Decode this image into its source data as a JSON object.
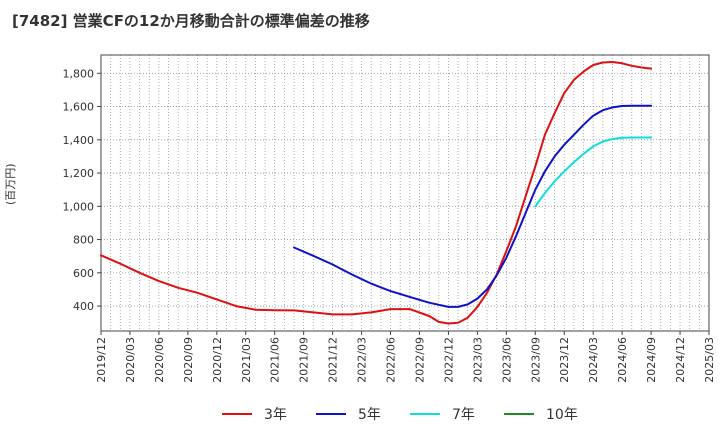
{
  "chart_data": {
    "type": "line",
    "title": "[7482]  営業CFの12か月移動合計の標準偏差の推移",
    "ylabel": "(百万円)",
    "xlabel": "",
    "y_ticks": [
      400,
      600,
      800,
      1000,
      1200,
      1400,
      1600,
      1800
    ],
    "y_tick_labels": [
      "400",
      "600",
      "800",
      "1,000",
      "1,200",
      "1,400",
      "1,600",
      "1,800"
    ],
    "ylim": [
      250,
      1910
    ],
    "x_ticks": [
      "2019/12",
      "2020/03",
      "2020/06",
      "2020/09",
      "2020/12",
      "2021/03",
      "2021/06",
      "2021/09",
      "2021/12",
      "2022/03",
      "2022/06",
      "2022/09",
      "2022/12",
      "2023/03",
      "2023/06",
      "2023/09",
      "2023/12",
      "2024/03",
      "2024/06",
      "2024/09",
      "2024/12",
      "2025/03"
    ],
    "grid": true,
    "legend_position": "bottom",
    "series": [
      {
        "name": "3年",
        "color": "#dd1111",
        "x": [
          "2019/12",
          "2020/02",
          "2020/04",
          "2020/06",
          "2020/08",
          "2020/10",
          "2020/12",
          "2021/02",
          "2021/04",
          "2021/06",
          "2021/08",
          "2021/10",
          "2021/12",
          "2022/02",
          "2022/04",
          "2022/06",
          "2022/08",
          "2022/10",
          "2022/11",
          "2022/12",
          "2023/01",
          "2023/02",
          "2023/03",
          "2023/04",
          "2023/05",
          "2023/06",
          "2023/07",
          "2023/08",
          "2023/09",
          "2023/10",
          "2023/11",
          "2023/12",
          "2024/01",
          "2024/02",
          "2024/03",
          "2024/04",
          "2024/05",
          "2024/06",
          "2024/07",
          "2024/08",
          "2024/09"
        ],
        "values": [
          705,
          655,
          600,
          550,
          510,
          480,
          440,
          400,
          378,
          375,
          374,
          362,
          350,
          350,
          362,
          382,
          382,
          340,
          305,
          295,
          300,
          330,
          395,
          480,
          590,
          730,
          880,
          1060,
          1240,
          1430,
          1560,
          1680,
          1760,
          1810,
          1850,
          1865,
          1868,
          1860,
          1845,
          1835,
          1828
        ]
      },
      {
        "name": "5年",
        "color": "#1111cc",
        "x": [
          "2021/08",
          "2021/10",
          "2021/12",
          "2022/02",
          "2022/04",
          "2022/06",
          "2022/08",
          "2022/10",
          "2022/12",
          "2023/01",
          "2023/02",
          "2023/03",
          "2023/04",
          "2023/05",
          "2023/06",
          "2023/07",
          "2023/08",
          "2023/09",
          "2023/10",
          "2023/11",
          "2023/12",
          "2024/01",
          "2024/02",
          "2024/03",
          "2024/04",
          "2024/05",
          "2024/06",
          "2024/07",
          "2024/08",
          "2024/09"
        ],
        "values": [
          752,
          702,
          650,
          590,
          535,
          490,
          455,
          420,
          395,
          395,
          410,
          445,
          500,
          585,
          690,
          820,
          960,
          1100,
          1210,
          1300,
          1370,
          1430,
          1490,
          1545,
          1578,
          1595,
          1603,
          1605,
          1605,
          1605
        ]
      },
      {
        "name": "7年",
        "color": "#11dddd",
        "x": [
          "2023/09",
          "2023/10",
          "2023/11",
          "2023/12",
          "2024/01",
          "2024/02",
          "2024/03",
          "2024/04",
          "2024/05",
          "2024/06",
          "2024/07",
          "2024/08",
          "2024/09"
        ],
        "values": [
          1000,
          1080,
          1150,
          1210,
          1265,
          1315,
          1360,
          1390,
          1405,
          1412,
          1414,
          1414,
          1414
        ]
      },
      {
        "name": "10年",
        "color": "#228822",
        "x": [],
        "values": []
      }
    ]
  }
}
